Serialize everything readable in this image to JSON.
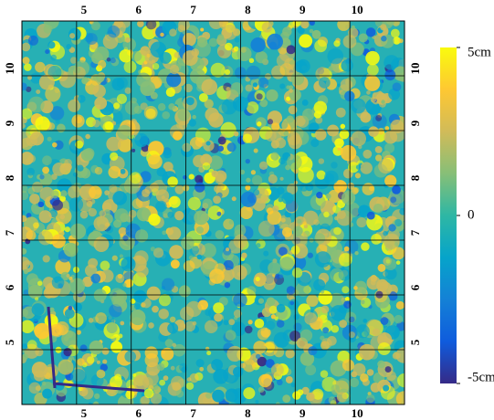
{
  "chart_data": {
    "type": "heatmap",
    "xlim": [
      4,
      11
    ],
    "ylim": [
      4,
      11
    ],
    "xticks": [
      5,
      6,
      7,
      8,
      9,
      10
    ],
    "yticks": [
      5,
      6,
      7,
      8,
      9,
      10
    ],
    "grid": true,
    "clim": [
      -5,
      5
    ],
    "colorbar_ticks": [
      {
        "value": 5,
        "label": "5cm"
      },
      0,
      {
        "value": -5,
        "label": "-5cm"
      }
    ],
    "colormap": [
      "#352a87",
      "#0f5cdd",
      "#1481d6",
      "#06a4ca",
      "#2eb7a4",
      "#87bf77",
      "#d1bb59",
      "#fec832",
      "#f9fb0e"
    ]
  }
}
